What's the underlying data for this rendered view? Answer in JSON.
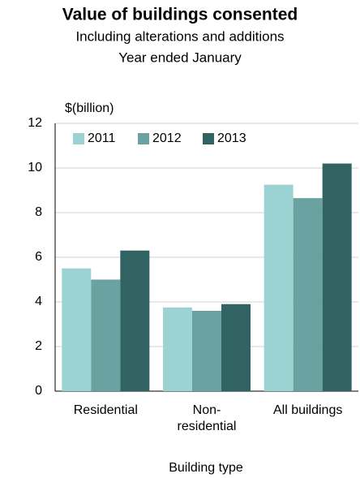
{
  "chart_data": {
    "type": "bar",
    "title": "Value of buildings consented",
    "subtitle": [
      "Including alterations and additions",
      "Year ended January"
    ],
    "y_label": "$(billion)",
    "x_label": "Building type",
    "categories": [
      "Residential",
      "Non-\nresidential",
      "All buildings"
    ],
    "series": [
      {
        "name": "2011",
        "color": "#9dd2d2",
        "values": [
          5.5,
          3.75,
          9.25
        ]
      },
      {
        "name": "2012",
        "color": "#6aa2a2",
        "values": [
          5.0,
          3.6,
          8.65
        ]
      },
      {
        "name": "2013",
        "color": "#316363",
        "values": [
          6.3,
          3.9,
          10.2
        ]
      }
    ],
    "ylim": [
      0,
      12
    ],
    "yticks": [
      0,
      2,
      4,
      6,
      8,
      10,
      12
    ],
    "grid": true,
    "legend": "top-left"
  }
}
